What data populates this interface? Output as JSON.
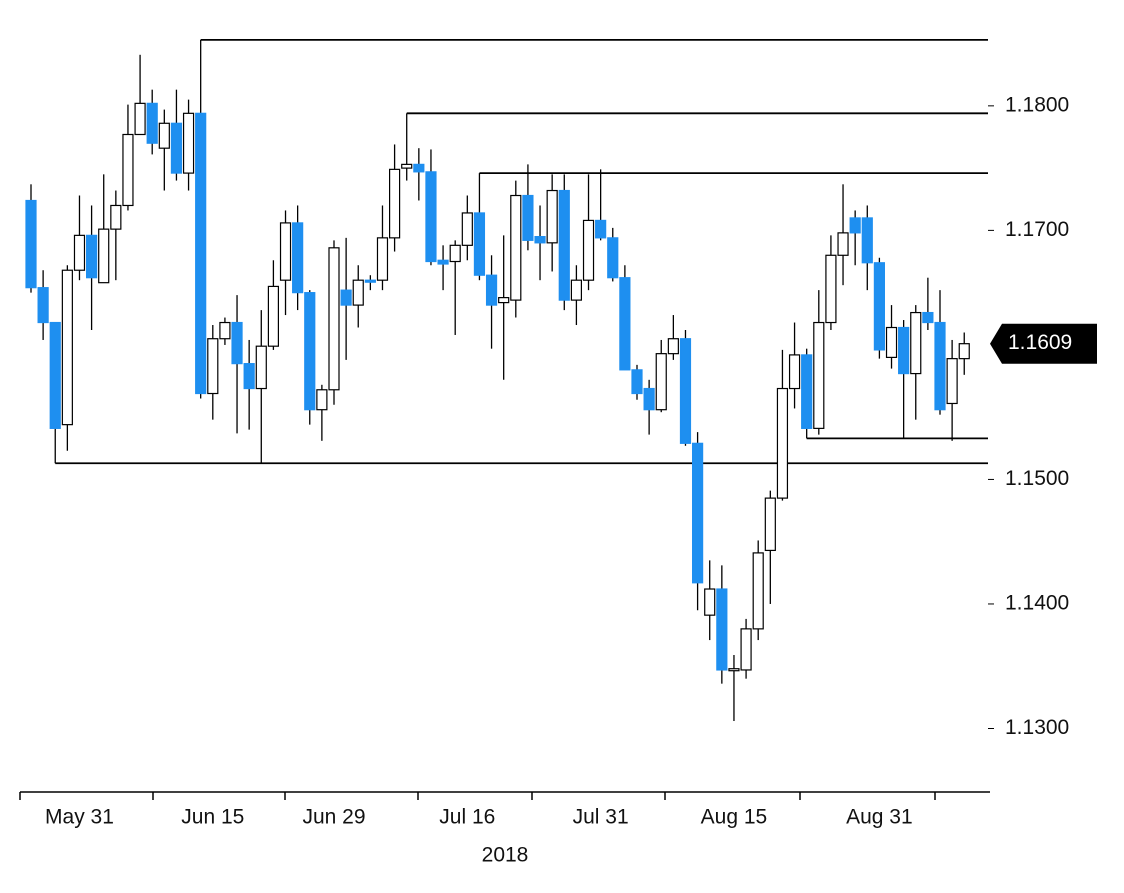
{
  "chart_data": {
    "type": "candlestick",
    "categories": [
      null,
      null,
      null,
      null,
      "May 31",
      null,
      null,
      null,
      null,
      null,
      null,
      null,
      null,
      null,
      null,
      "Jun 15",
      null,
      null,
      null,
      null,
      null,
      null,
      null,
      null,
      null,
      "Jun 29",
      null,
      null,
      null,
      null,
      null,
      null,
      null,
      null,
      null,
      null,
      "Jul 16",
      null,
      null,
      null,
      null,
      null,
      null,
      null,
      null,
      null,
      null,
      "Jul 31",
      null,
      null,
      null,
      null,
      null,
      null,
      null,
      null,
      null,
      null,
      "Aug 15",
      null,
      null,
      null,
      null,
      null,
      null,
      null,
      null,
      null,
      null,
      null,
      "Aug 31",
      null,
      null,
      null,
      null,
      null,
      null,
      null
    ],
    "x_label": "2018",
    "open": [
      1.1724,
      1.1654,
      1.1626,
      1.1544,
      1.1668,
      1.1696,
      1.1658,
      1.1701,
      1.172,
      1.1777,
      1.1802,
      1.1766,
      1.1786,
      1.1746,
      1.1794,
      1.1569,
      1.1613,
      1.1626,
      1.1593,
      1.1573,
      1.1607,
      1.166,
      1.1706,
      1.165,
      1.1556,
      1.1572,
      1.1652,
      1.164,
      1.166,
      1.166,
      1.1694,
      1.175,
      1.1753,
      1.1747,
      1.1676,
      1.1675,
      1.1688,
      1.1714,
      1.1664,
      1.1642,
      1.1644,
      1.1728,
      1.1695,
      1.169,
      1.1732,
      1.1644,
      1.166,
      1.1708,
      1.1694,
      1.1662,
      1.1588,
      1.1573,
      1.1556,
      1.1601,
      1.1613,
      1.1529,
      1.1391,
      1.1412,
      1.1347,
      1.1347,
      1.138,
      1.1443,
      1.1485,
      1.1573,
      1.16,
      1.1541,
      1.1626,
      1.168,
      1.171,
      1.171,
      1.1674,
      1.1598,
      1.1622,
      1.1585,
      1.1634,
      1.1626,
      1.1561,
      1.1597
    ],
    "high": [
      1.1737,
      1.1668,
      1.1626,
      1.1672,
      1.1728,
      1.172,
      1.1745,
      1.1732,
      1.1801,
      1.1841,
      1.1813,
      1.1797,
      1.1813,
      1.1805,
      1.1853,
      1.1624,
      1.163,
      1.1648,
      1.1612,
      1.1636,
      1.1676,
      1.1716,
      1.172,
      1.1652,
      1.1576,
      1.1692,
      1.1694,
      1.1672,
      1.1664,
      1.172,
      1.1769,
      1.1794,
      1.1766,
      1.1765,
      1.1688,
      1.1692,
      1.1728,
      1.1746,
      1.168,
      1.1696,
      1.174,
      1.1753,
      1.172,
      1.1745,
      1.1745,
      1.1672,
      1.1745,
      1.1749,
      1.1702,
      1.1672,
      1.1592,
      1.158,
      1.1612,
      1.1632,
      1.162,
      1.1538,
      1.1435,
      1.1431,
      1.1359,
      1.1388,
      1.1451,
      1.1491,
      1.1604,
      1.1626,
      1.1605,
      1.1652,
      1.1696,
      1.1737,
      1.1716,
      1.172,
      1.1678,
      1.164,
      1.1628,
      1.164,
      1.1662,
      1.1652,
      1.1612,
      1.1618
    ],
    "low": [
      1.165,
      1.1612,
      1.1513,
      1.1523,
      1.166,
      1.162,
      1.1658,
      1.166,
      1.1716,
      1.1777,
      1.1761,
      1.1732,
      1.174,
      1.1732,
      1.1565,
      1.1548,
      1.1608,
      1.1537,
      1.154,
      1.1513,
      1.1604,
      1.1632,
      1.1636,
      1.1544,
      1.1531,
      1.156,
      1.1596,
      1.1622,
      1.1652,
      1.1652,
      1.1683,
      1.174,
      1.1724,
      1.1672,
      1.1652,
      1.1616,
      1.1676,
      1.166,
      1.1605,
      1.158,
      1.163,
      1.1684,
      1.166,
      1.1667,
      1.1636,
      1.1624,
      1.1652,
      1.1692,
      1.1659,
      1.1588,
      1.1564,
      1.1536,
      1.1554,
      1.1596,
      1.1527,
      1.1395,
      1.1371,
      1.1336,
      1.1306,
      1.134,
      1.1371,
      1.14,
      1.1483,
      1.1557,
      1.1533,
      1.1536,
      1.162,
      1.1656,
      1.1672,
      1.1652,
      1.1597,
      1.1589,
      1.1533,
      1.1548,
      1.162,
      1.1552,
      1.1531,
      1.1584
    ],
    "close": [
      1.1654,
      1.1626,
      1.1541,
      1.1668,
      1.1696,
      1.1662,
      1.1701,
      1.172,
      1.1777,
      1.1802,
      1.177,
      1.1786,
      1.1746,
      1.1794,
      1.1569,
      1.1613,
      1.1626,
      1.1593,
      1.1573,
      1.1607,
      1.1655,
      1.1706,
      1.165,
      1.1556,
      1.1572,
      1.1686,
      1.164,
      1.166,
      1.1659,
      1.1694,
      1.1749,
      1.1753,
      1.1747,
      1.1675,
      1.1673,
      1.1688,
      1.1714,
      1.1664,
      1.164,
      1.1646,
      1.1728,
      1.1692,
      1.169,
      1.1732,
      1.1644,
      1.166,
      1.1708,
      1.1694,
      1.1662,
      1.1588,
      1.1569,
      1.1556,
      1.1601,
      1.1613,
      1.1529,
      1.1417,
      1.1412,
      1.1347,
      1.1348,
      1.138,
      1.1441,
      1.1485,
      1.1573,
      1.16,
      1.1541,
      1.1626,
      1.168,
      1.1698,
      1.1698,
      1.1674,
      1.1604,
      1.1622,
      1.1585,
      1.1634,
      1.1626,
      1.1556,
      1.1597,
      1.1609
    ],
    "up_color": "#ffffff",
    "down_color": "#1e8ff0",
    "levels": [
      {
        "value": 1.1853,
        "from": 14
      },
      {
        "value": 1.1794,
        "from": 31
      },
      {
        "value": 1.1746,
        "from": 37
      },
      {
        "value": 1.1513,
        "from": 2
      },
      {
        "value": 1.1533,
        "from": 64
      }
    ],
    "last_price": {
      "value": 1.1609,
      "label": "1.1609"
    },
    "ylim": [
      1.1249,
      1.1885
    ],
    "yticks": [
      {
        "value": 1.13,
        "label": "1.1300"
      },
      {
        "value": 1.14,
        "label": "1.1400"
      },
      {
        "value": 1.15,
        "label": "1.1500"
      },
      {
        "value": 1.17,
        "label": "1.1700"
      },
      {
        "value": 1.18,
        "label": "1.1800"
      }
    ]
  }
}
